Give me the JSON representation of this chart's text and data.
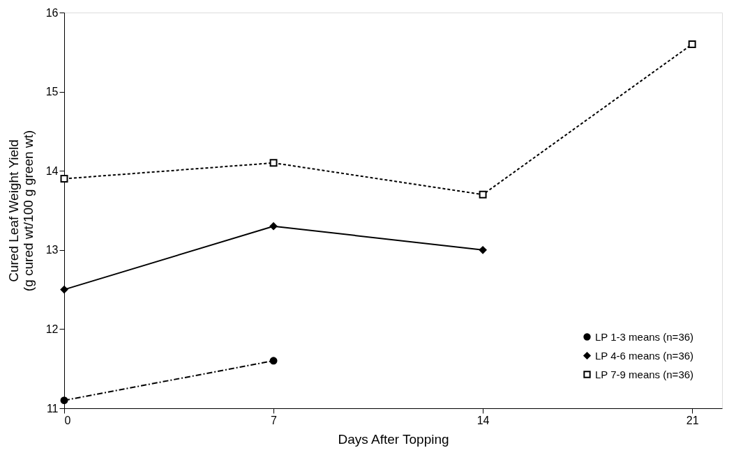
{
  "chart_data": {
    "type": "line",
    "xlabel": "Days After Topping",
    "ylabel": "Cured Leaf Weight Yield\n(g cured wt/100 g green wt)",
    "xlim": [
      0,
      22
    ],
    "xticks": [
      0,
      7,
      14,
      21
    ],
    "ylim": [
      11,
      16
    ],
    "yticks": [
      11,
      12,
      13,
      14,
      15,
      16
    ],
    "grid": false,
    "legend": "bottom right",
    "series": [
      {
        "name": "LP 1-3 means (n=36)",
        "color": "#000000",
        "x": [
          0,
          7
        ],
        "values": [
          11.1,
          11.6
        ],
        "marker": "circle",
        "line_style": "dashed"
      },
      {
        "name": "LP 4-6 means (n=36)",
        "color": "#000000",
        "x": [
          0,
          7,
          14
        ],
        "values": [
          12.5,
          13.3,
          13.0
        ],
        "marker": "diamond",
        "line_style": "solid"
      },
      {
        "name": "LP 7-9 means (n=36)",
        "color": "#000000",
        "x": [
          0,
          7,
          14,
          21
        ],
        "values": [
          13.9,
          14.1,
          13.7,
          15.6
        ],
        "marker": "square",
        "line_style": "dotted"
      }
    ]
  }
}
